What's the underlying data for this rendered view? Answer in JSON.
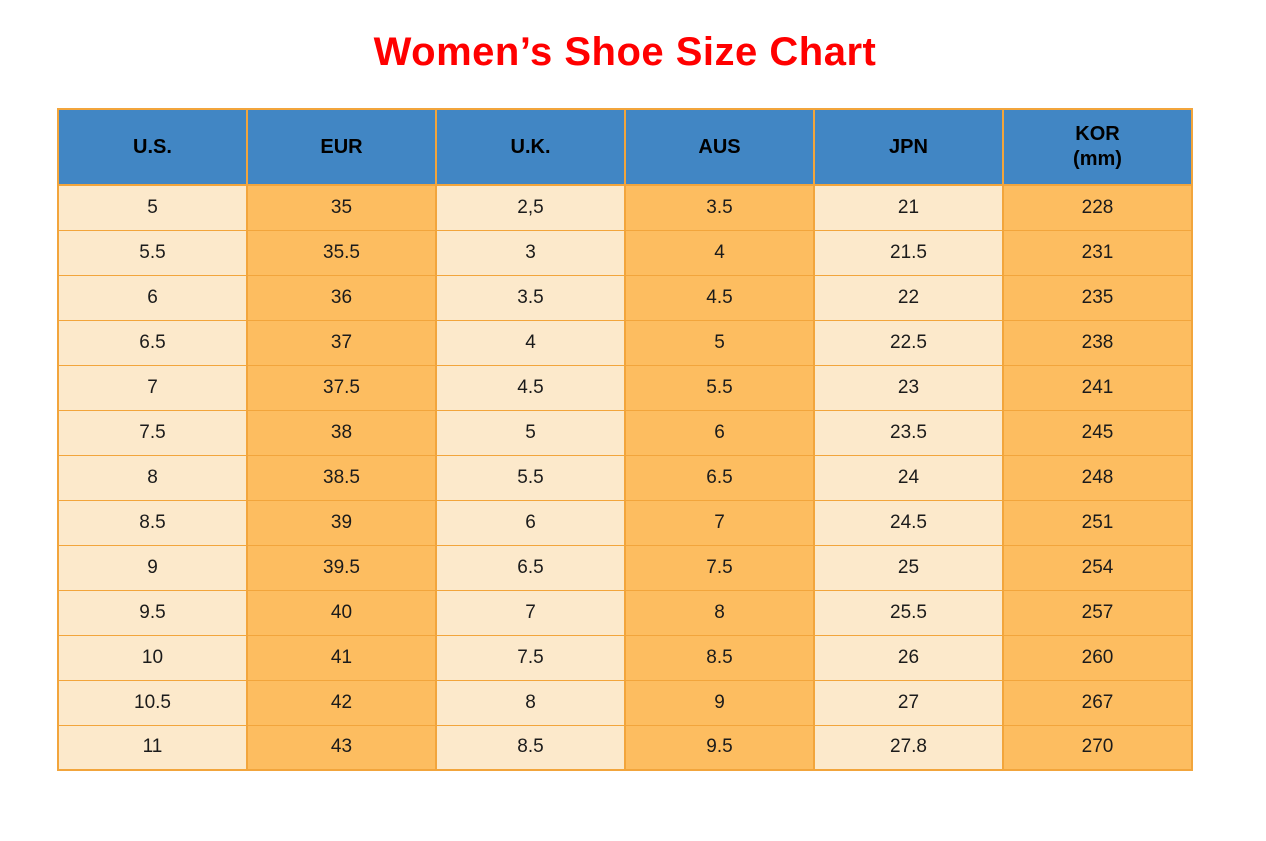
{
  "title": "Women’s Shoe Size Chart",
  "colors": {
    "title_color": "#FF0000",
    "header_bg": "#4186C4",
    "cream": "#FCE9CB",
    "orange": "#FDBD60",
    "border": "#F2A53C",
    "text": "#1B1B1B",
    "header_text": "#000000",
    "page_bg": "#FFFFFF"
  },
  "chart_data": {
    "type": "table",
    "title": "Women’s Shoe Size Chart",
    "columns": [
      {
        "id": "us",
        "label": "U.S."
      },
      {
        "id": "eur",
        "label": "EUR"
      },
      {
        "id": "uk",
        "label": "U.K."
      },
      {
        "id": "aus",
        "label": "AUS"
      },
      {
        "id": "jpn",
        "label": "JPN"
      },
      {
        "id": "kor",
        "label": "KOR",
        "sublabel": "(mm)"
      }
    ],
    "column_stripe_colors": [
      "cream",
      "orange",
      "cream",
      "orange",
      "cream",
      "orange"
    ],
    "rows": [
      [
        "5",
        "35",
        "2,5",
        "3.5",
        "21",
        "228"
      ],
      [
        "5.5",
        "35.5",
        "3",
        "4",
        "21.5",
        "231"
      ],
      [
        "6",
        "36",
        "3.5",
        "4.5",
        "22",
        "235"
      ],
      [
        "6.5",
        "37",
        "4",
        "5",
        "22.5",
        "238"
      ],
      [
        "7",
        "37.5",
        "4.5",
        "5.5",
        "23",
        "241"
      ],
      [
        "7.5",
        "38",
        "5",
        "6",
        "23.5",
        "245"
      ],
      [
        "8",
        "38.5",
        "5.5",
        "6.5",
        "24",
        "248"
      ],
      [
        "8.5",
        "39",
        "6",
        "7",
        "24.5",
        "251"
      ],
      [
        "9",
        "39.5",
        "6.5",
        "7.5",
        "25",
        "254"
      ],
      [
        "9.5",
        "40",
        "7",
        "8",
        "25.5",
        "257"
      ],
      [
        "10",
        "41",
        "7.5",
        "8.5",
        "26",
        "260"
      ],
      [
        "10.5",
        "42",
        "8",
        "9",
        "27",
        "267"
      ],
      [
        "11",
        "43",
        "8.5",
        "9.5",
        "27.8",
        "270"
      ]
    ]
  }
}
